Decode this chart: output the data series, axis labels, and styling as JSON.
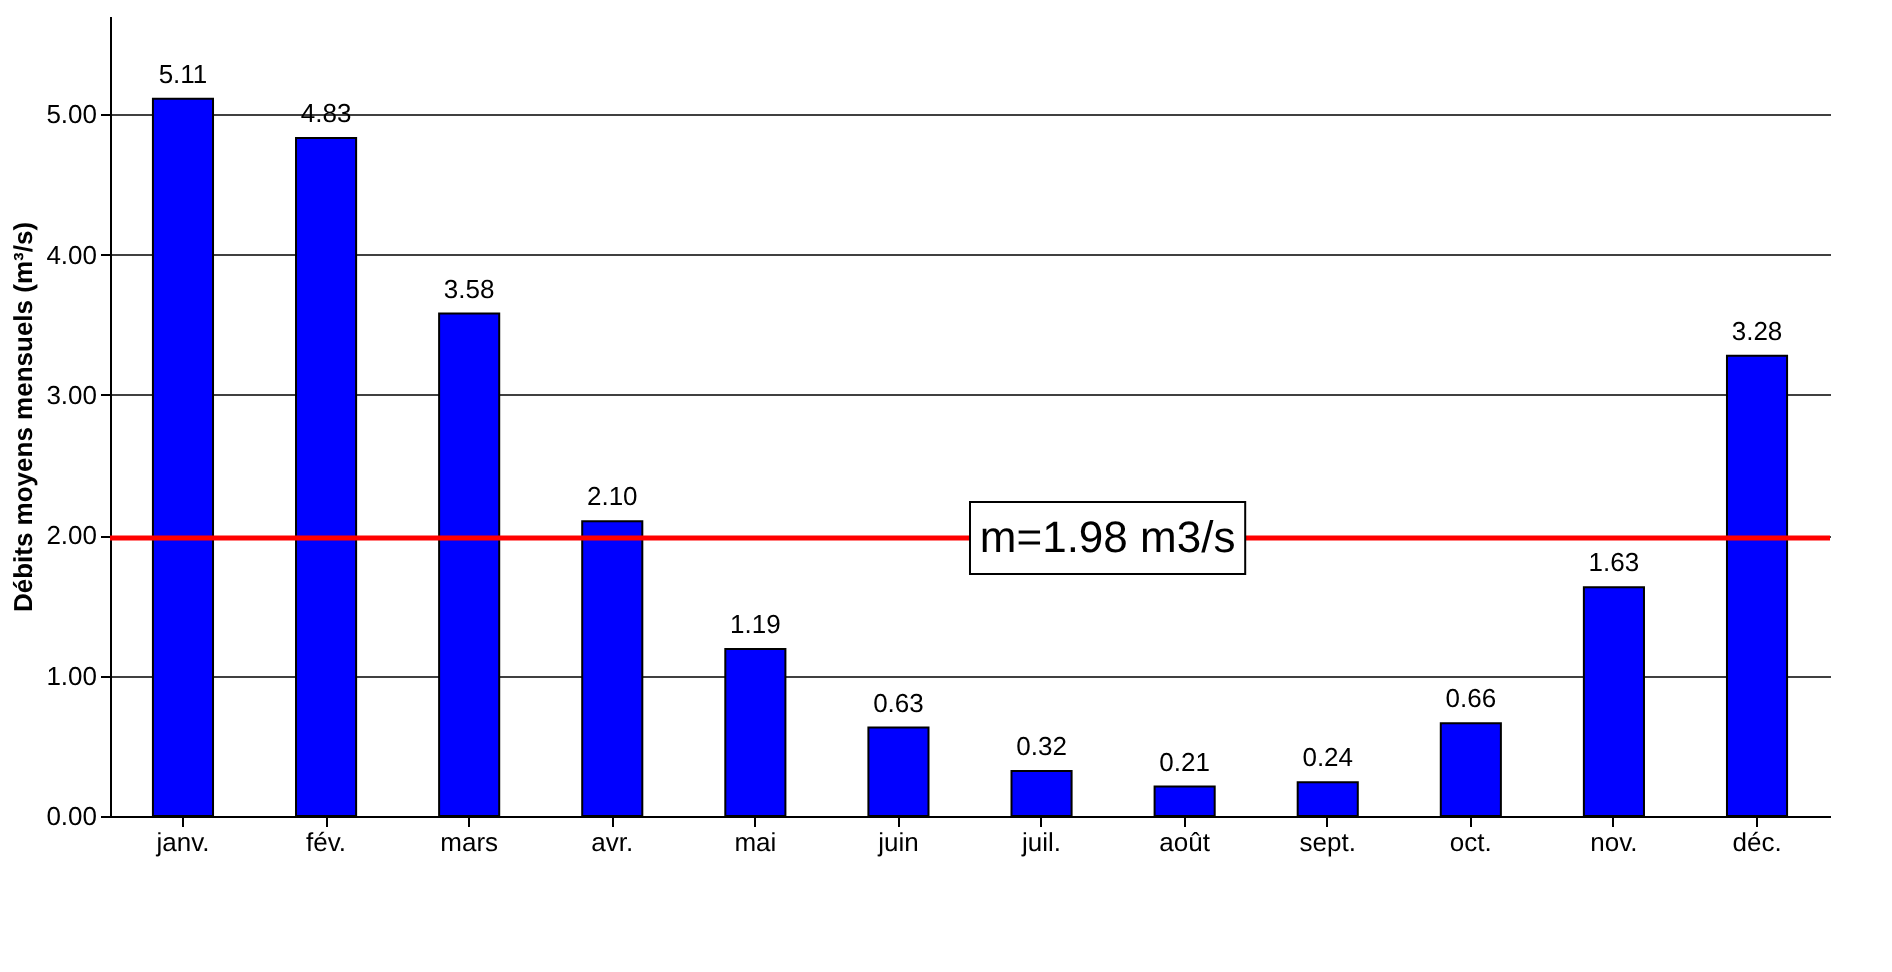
{
  "chart_data": {
    "type": "bar",
    "ylabel": "Débits moyens mensuels (m³/s)",
    "categories": [
      "janv.",
      "fév.",
      "mars",
      "avr.",
      "mai",
      "juin",
      "juil.",
      "août",
      "sept.",
      "oct.",
      "nov.",
      "déc."
    ],
    "values": [
      5.11,
      4.83,
      3.58,
      2.1,
      1.19,
      0.63,
      0.32,
      0.21,
      0.24,
      0.66,
      1.63,
      3.28
    ],
    "value_labels": [
      "5.11",
      "4.83",
      "3.58",
      "2.10",
      "1.19",
      "0.63",
      "0.32",
      "0.21",
      "0.24",
      "0.66",
      "1.63",
      "3.28"
    ],
    "color": "#0000ff",
    "ylim": [
      0,
      5.7
    ],
    "yticks": [
      {
        "value": 0,
        "label": "0.00"
      },
      {
        "value": 1,
        "label": "1.00"
      },
      {
        "value": 2,
        "label": "2.00"
      },
      {
        "value": 3,
        "label": "3.00"
      },
      {
        "value": 4,
        "label": "4.00"
      },
      {
        "value": 5,
        "label": "5.00"
      }
    ],
    "grid": "y",
    "ref_lines": [
      {
        "axis": "y",
        "value": 1.98,
        "label": "m=1.98 m3/s",
        "color": "#ff0000"
      }
    ]
  }
}
